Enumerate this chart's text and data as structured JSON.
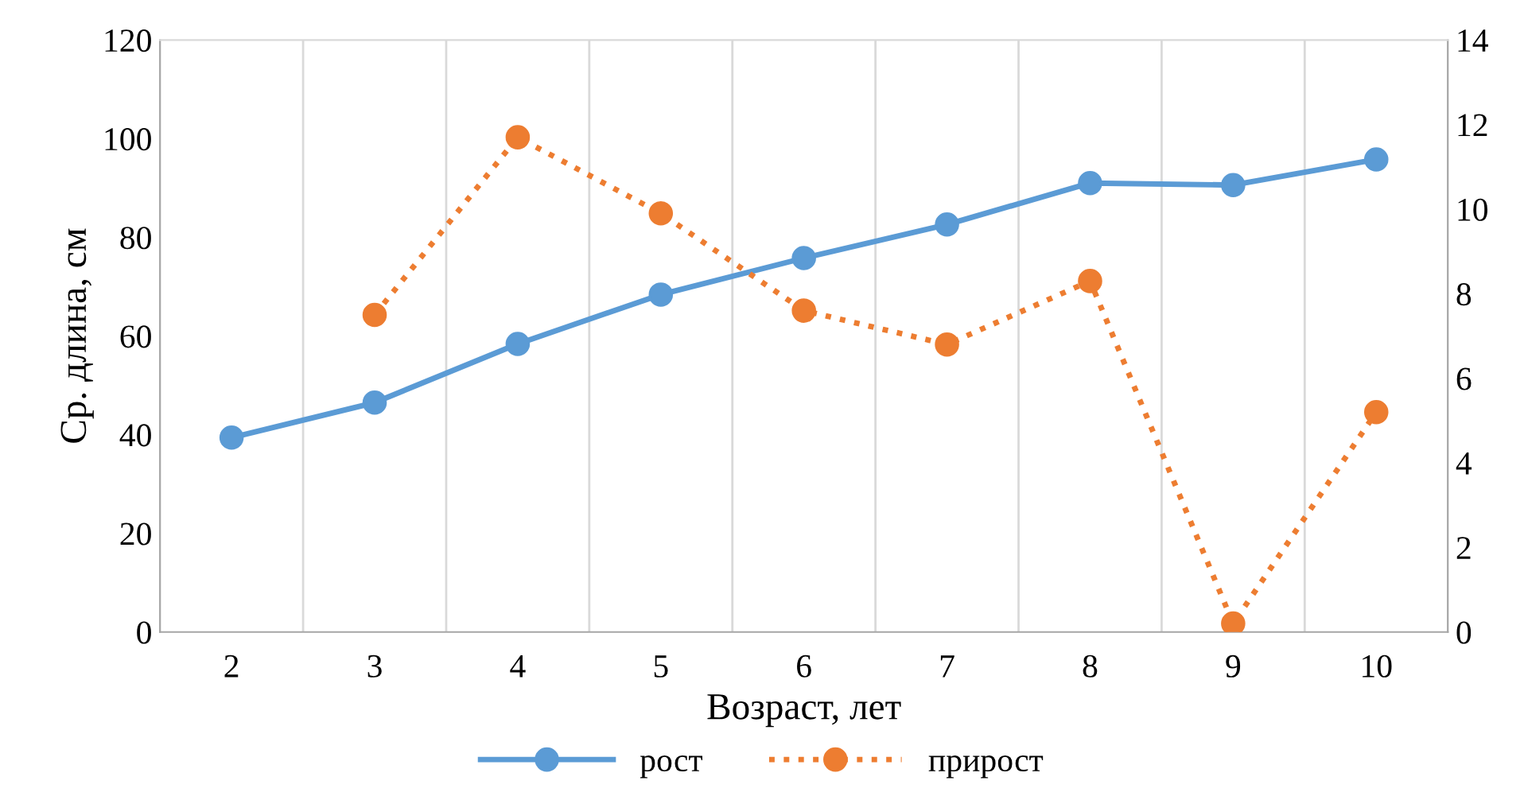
{
  "chart_data": {
    "type": "line",
    "xlabel": "Возраст, лет",
    "ylabel": "Ср. длина, см",
    "categories": [
      "2",
      "3",
      "4",
      "5",
      "6",
      "7",
      "8",
      "9",
      "10"
    ],
    "series": [
      {
        "name": "рост",
        "color": "#5b9bd5",
        "values": [
          39.4,
          46.5,
          58.4,
          68.4,
          75.8,
          82.6,
          91,
          90.6,
          95.8
        ],
        "line_style": "solid"
      },
      {
        "name": "прирост",
        "color": "#ed7d31",
        "values": [
          null,
          7.5,
          11.7,
          9.9,
          7.6,
          6.8,
          8.3,
          0.2,
          5.2
        ],
        "axis": "y2",
        "line_style": "dotted"
      }
    ],
    "ylim": [
      0,
      120
    ],
    "yticks": [
      0,
      20,
      40,
      60,
      80,
      100,
      120
    ],
    "y2lim": [
      0,
      14
    ],
    "y2ticks": [
      0,
      2,
      4,
      6,
      8,
      10,
      12,
      14
    ],
    "grid": "x",
    "legend": "bottom",
    "marker": "circle"
  }
}
